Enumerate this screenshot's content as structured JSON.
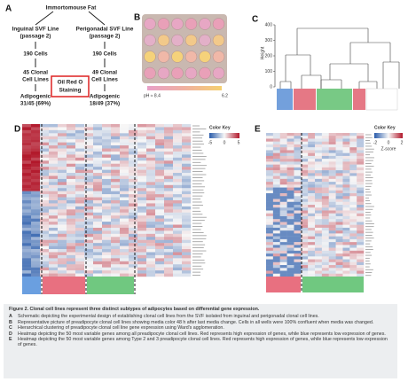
{
  "panelA": {
    "letter": "A",
    "source": "Immortomouse Fat",
    "left": {
      "line": "Inguinal SVF Line",
      "passage": "(passage 2)",
      "cells": "190 Cells",
      "clonal": "45 Clonal",
      "celllines": "Cell Lines",
      "adipogenic": "Adipogenic",
      "ratio": "31/45 (69%)"
    },
    "right": {
      "line": "Perigonadal SVF Line",
      "passage": "(passage 2)",
      "cells": "190 Cells",
      "clonal": "49 Clonal",
      "celllines": "Cell Lines",
      "adipogenic": "Adipogenic",
      "ratio": "18/49 (37%)"
    },
    "stain": [
      "Oil Red O",
      "Staining"
    ]
  },
  "panelB": {
    "letter": "B",
    "ph_high": "pH ≈ 8.4",
    "ph_low": "6.2"
  },
  "panelC": {
    "letter": "C",
    "axis_label": "Height",
    "ticks": [
      "400",
      "300",
      "200",
      "100",
      "0"
    ]
  },
  "panelD": {
    "letter": "D",
    "key_title": "Color Key",
    "key_ticks": [
      "-5",
      "0",
      "5"
    ]
  },
  "panelE": {
    "letter": "E",
    "key_title": "Color Key",
    "key_ticks": [
      "-2",
      "0",
      "2"
    ],
    "key_label": "Z-score"
  },
  "caption": {
    "title": "Figure 2.  Clonal cell lines represent three distinct subtypes of adipocytes based on differential gene expression.",
    "items": [
      {
        "letter": "A",
        "text": "Schematic depicting the experimental design of establishing clonal cell lines from the SVF isolated from inguinal and perigonadal clonal cell lines."
      },
      {
        "letter": "B",
        "text": "Representative picture of preadipocyte clonal cell lines showing media color 48 h after last media change. Cells in all wells were 100% confluent when media was changed."
      },
      {
        "letter": "C",
        "text": "Hierarchical clustering of preadipocyte clonal cell line gene expression using Ward's agglomeration."
      },
      {
        "letter": "D",
        "text": "Heatmap depicting the 50 most variable genes among all preadipocyte clonal cell lines. Red represents high expression of genes, while blue represents low expression of genes."
      },
      {
        "letter": "E",
        "text": "Heatmap depicting the 50 most variable genes among Type 2 and 3 preadipocyte clonal cell lines. Red represents high expression of genes, while blue represents low expression of genes."
      }
    ]
  }
}
